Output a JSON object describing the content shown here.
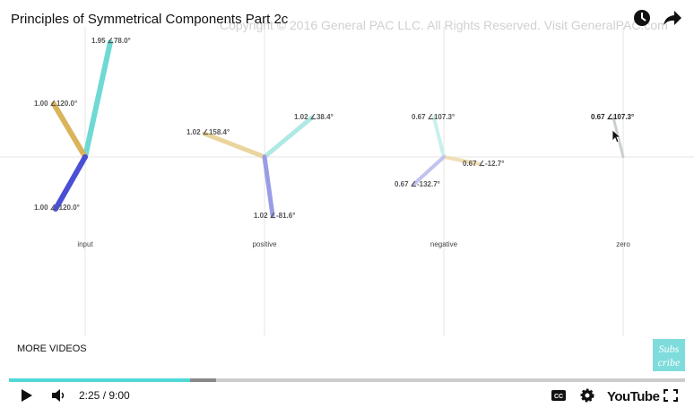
{
  "video": {
    "title": "Principles of Symmetrical Components Part 2c",
    "watermark": "Copyright © 2016 General PAC LLC. All Rights Reserved. Visit GeneralPAC.com",
    "more_videos": "MORE VIDEOS",
    "subscribe": [
      "Subs",
      "cribe"
    ]
  },
  "panels": [
    {
      "name": "input",
      "phasors": [
        "1.95 ∠78.0°",
        "1.00 ∠120.0°",
        "1.00 ∠-120.0°"
      ]
    },
    {
      "name": "positive",
      "phasors": [
        "1.02 ∠38.4°",
        "1.02 ∠158.4°",
        "1.02 ∠-81.6°"
      ]
    },
    {
      "name": "negative",
      "phasors": [
        "0.67 ∠107.3°",
        "0.67 ∠-12.7°",
        "0.67 ∠-132.7°"
      ]
    },
    {
      "name": "zero",
      "phasors": [
        "0.67 ∠107.3°"
      ]
    }
  ],
  "player": {
    "time": "2:25 / 9:00",
    "brand": "YouTube",
    "cc": "CC"
  }
}
